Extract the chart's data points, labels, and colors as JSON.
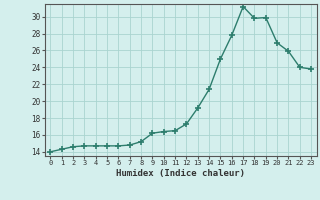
{
  "x": [
    0,
    1,
    2,
    3,
    4,
    5,
    6,
    7,
    8,
    9,
    10,
    11,
    12,
    13,
    14,
    15,
    16,
    17,
    18,
    19,
    20,
    21,
    22,
    23
  ],
  "y": [
    14.0,
    14.3,
    14.6,
    14.7,
    14.7,
    14.7,
    14.7,
    14.8,
    15.2,
    16.2,
    16.4,
    16.5,
    17.3,
    19.2,
    21.4,
    25.0,
    27.8,
    31.2,
    29.8,
    29.9,
    26.9,
    25.9,
    24.0,
    23.8
  ],
  "xlabel": "Humidex (Indice chaleur)",
  "xlim": [
    -0.5,
    23.5
  ],
  "ylim": [
    13.5,
    31.5
  ],
  "yticks": [
    14,
    16,
    18,
    20,
    22,
    24,
    26,
    28,
    30
  ],
  "xticks": [
    0,
    1,
    2,
    3,
    4,
    5,
    6,
    7,
    8,
    9,
    10,
    11,
    12,
    13,
    14,
    15,
    16,
    17,
    18,
    19,
    20,
    21,
    22,
    23
  ],
  "line_color": "#2d7d6d",
  "bg_color": "#d4efed",
  "grid_color": "#aad4d0",
  "text_color": "#333333",
  "axis_color": "#555555"
}
